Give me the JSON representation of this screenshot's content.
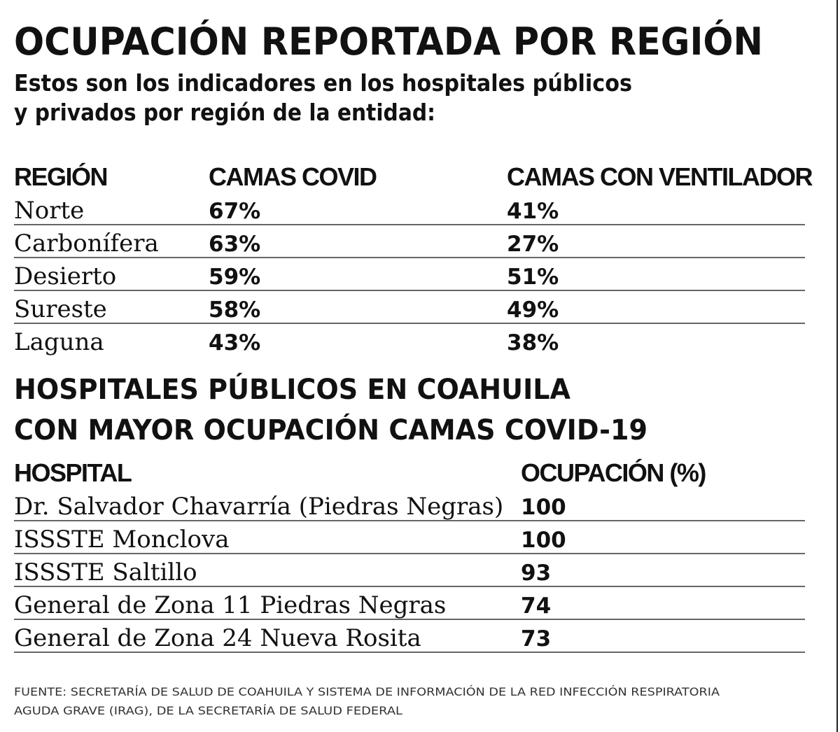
{
  "title": "OCUPACIÓN REPORTADA POR REGIÓN",
  "subtitle": [
    "Estos son los indicadores en los hospitales públicos",
    "y privados por región de la entidad:"
  ],
  "region_table": {
    "header": [
      "REGIÓN",
      "CAMAS COVID",
      "CAMAS CON VENTILADOR"
    ],
    "rows": [
      [
        "Norte",
        "67%",
        "41%"
      ],
      [
        "Carbonífera",
        "63%",
        "27%"
      ],
      [
        "Desierto",
        "59%",
        "51%"
      ],
      [
        "Sureste",
        "58%",
        "49%"
      ],
      [
        "Laguna",
        "43%",
        "38%"
      ]
    ]
  },
  "hospital_title": [
    "HOSPITALES PÚBLICOS EN COAHUILA",
    "CON MAYOR OCUPACIÓN CAMAS COVID-19"
  ],
  "hospital_table": {
    "header": [
      "HOSPITAL",
      "OCUPACIÓN (%)"
    ],
    "rows": [
      [
        "Dr. Salvador Chavarría (Piedras Negras)",
        "100"
      ],
      [
        "ISSSTE Monclova",
        "100"
      ],
      [
        "ISSSTE Saltillo",
        "93"
      ],
      [
        "General de Zona 11 Piedras Negras",
        "74"
      ],
      [
        "General de Zona 24 Nueva Rosita",
        "73"
      ]
    ]
  },
  "source": [
    "FUENTE: SECRETARÍA DE SALUD DE COAHUILA Y SISTEMA DE INFORMACIÓN DE LA RED INFECCIÓN RESPIRATORIA",
    "AGUDA GRAVE (IRAG), DE LA SECRETARÍA DE SALUD FEDERAL"
  ]
}
